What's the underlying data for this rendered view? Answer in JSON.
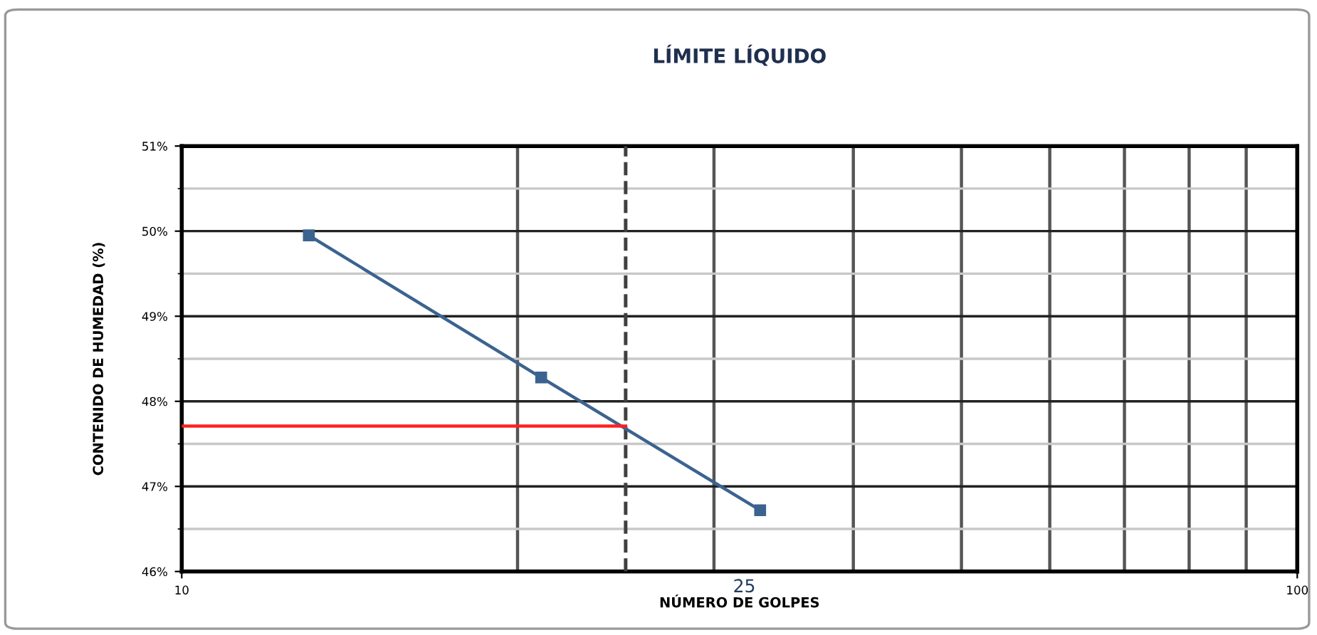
{
  "chart_data": {
    "type": "line",
    "title": "LÍMITE LÍQUIDO",
    "xlabel": "NÚMERO DE GOLPES",
    "ylabel": "CONTENIDO DE HUMEDAD (%)",
    "log": "x",
    "xlim": [
      10,
      100
    ],
    "xticks": [
      10,
      100
    ],
    "ylim": [
      46,
      51
    ],
    "yticks": [
      {
        "value": 46,
        "label": "46%"
      },
      {
        "value": 47,
        "label": "47%"
      },
      {
        "value": 48,
        "label": "48%"
      },
      {
        "value": 49,
        "label": "49%"
      },
      {
        "value": 50,
        "label": "50%"
      },
      {
        "value": 51,
        "label": "51%"
      }
    ],
    "grid": true,
    "legend": false,
    "series": [
      {
        "color": "#3c6390",
        "x": [
          13,
          21,
          33
        ],
        "values": [
          49.95,
          48.28,
          46.72
        ],
        "marker": "square"
      },
      {
        "color": "#ff2020",
        "x": [
          10,
          25
        ],
        "values": [
          47.71,
          47.71
        ],
        "marker": "none"
      }
    ],
    "ref_lines": [
      {
        "axis": "x",
        "value": 25,
        "label": "25",
        "color": "#404040",
        "line_style": "dashed"
      }
    ]
  }
}
